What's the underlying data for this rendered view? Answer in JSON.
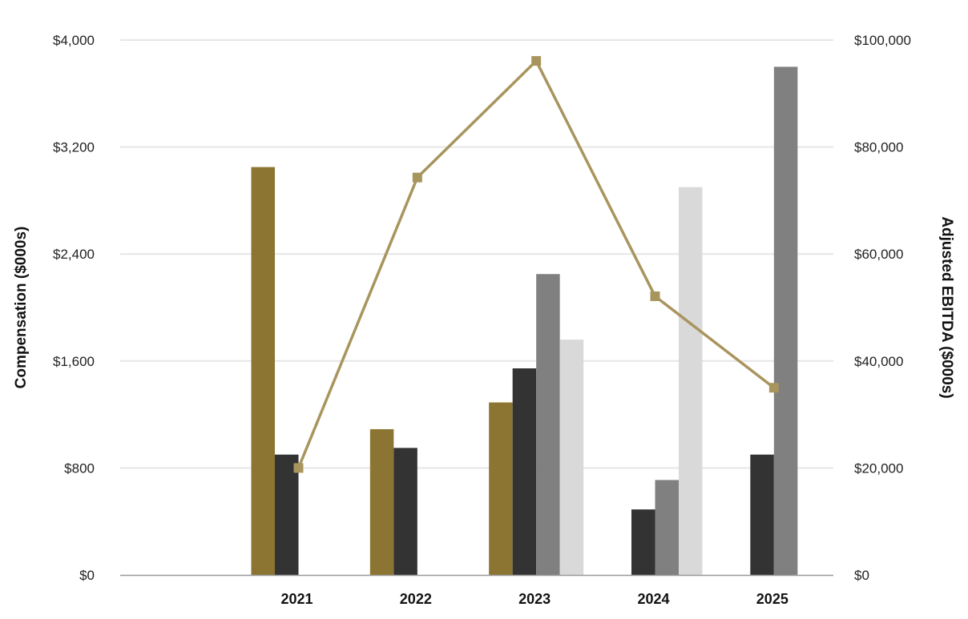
{
  "chart_data": {
    "type": "bar",
    "categories": [
      "",
      "2021",
      "2022",
      "2023",
      "2024",
      "2025"
    ],
    "series": [
      {
        "type": "bar",
        "axis": "left",
        "color": "#8C7532",
        "values": [
          null,
          3050,
          1090,
          1290,
          null,
          null
        ]
      },
      {
        "type": "bar",
        "axis": "left",
        "color": "#333333",
        "values": [
          null,
          900,
          950,
          1545,
          490,
          900
        ]
      },
      {
        "type": "bar",
        "axis": "left",
        "color": "#808080",
        "values": [
          null,
          null,
          null,
          2250,
          710,
          3800
        ]
      },
      {
        "type": "bar",
        "axis": "left",
        "color": "#D9D9D9",
        "values": [
          null,
          null,
          null,
          1760,
          2900,
          null
        ]
      },
      {
        "type": "line",
        "axis": "right",
        "color": "#A8955E",
        "marker": "square",
        "values": [
          null,
          20000,
          74300,
          96100,
          52100,
          35000
        ]
      }
    ],
    "ylabel": "Compensation ($000s)",
    "y2label": "Adjusted EBITDA ($000s)",
    "ylim": [
      0,
      4000
    ],
    "y2lim": [
      0,
      100000
    ],
    "yticks": [
      "$0",
      "$800",
      "$1,600",
      "$2,400",
      "$3,200",
      "$4,000"
    ],
    "y2ticks": [
      "$0",
      "$20,000",
      "$40,000",
      "$60,000",
      "$80,000",
      "$100,000"
    ],
    "grid": true,
    "legend": "none"
  }
}
